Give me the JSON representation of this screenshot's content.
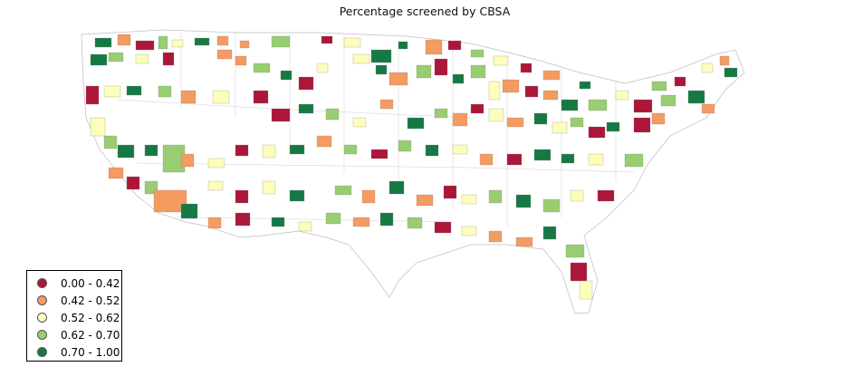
{
  "title": "Percentage screened by CBSA",
  "legend": [
    {
      "label": "0.00 - 0.42",
      "color": "#ac1638"
    },
    {
      "label": "0.42 - 0.52",
      "color": "#f59a61"
    },
    {
      "label": "0.52 - 0.62",
      "color": "#fdfdbc"
    },
    {
      "label": "0.62 - 0.70",
      "color": "#98cd71"
    },
    {
      "label": "0.70 - 1.00",
      "color": "#167944"
    }
  ],
  "region_value_bins": [
    4,
    1,
    0,
    3,
    2,
    4,
    1,
    1,
    3,
    0,
    2,
    4,
    4,
    1,
    0,
    3,
    2,
    0,
    1,
    4,
    3,
    0,
    2,
    1,
    4,
    4,
    3,
    2,
    0,
    1,
    1,
    3,
    4,
    0,
    2,
    2,
    4,
    1,
    3,
    0,
    4,
    3,
    2,
    1,
    0,
    1,
    4,
    3,
    2,
    0,
    3,
    4,
    1,
    0,
    2,
    4,
    3,
    1,
    2,
    0,
    0,
    4,
    3,
    2,
    1,
    4,
    3,
    1,
    0,
    2,
    1,
    4,
    2,
    3,
    0,
    4,
    0,
    1,
    2,
    3,
    4,
    4,
    3,
    1,
    2,
    0,
    2,
    4,
    1,
    3,
    0,
    3,
    4,
    2,
    1,
    0,
    4,
    4,
    2,
    3,
    1,
    0,
    3,
    1,
    4,
    2,
    0,
    2,
    4,
    3,
    1,
    4,
    1,
    0,
    2,
    3,
    4,
    3,
    2,
    0,
    1,
    0,
    4,
    2,
    3,
    1,
    4,
    3,
    0,
    2,
    1,
    1,
    4,
    3,
    0,
    2
  ]
}
